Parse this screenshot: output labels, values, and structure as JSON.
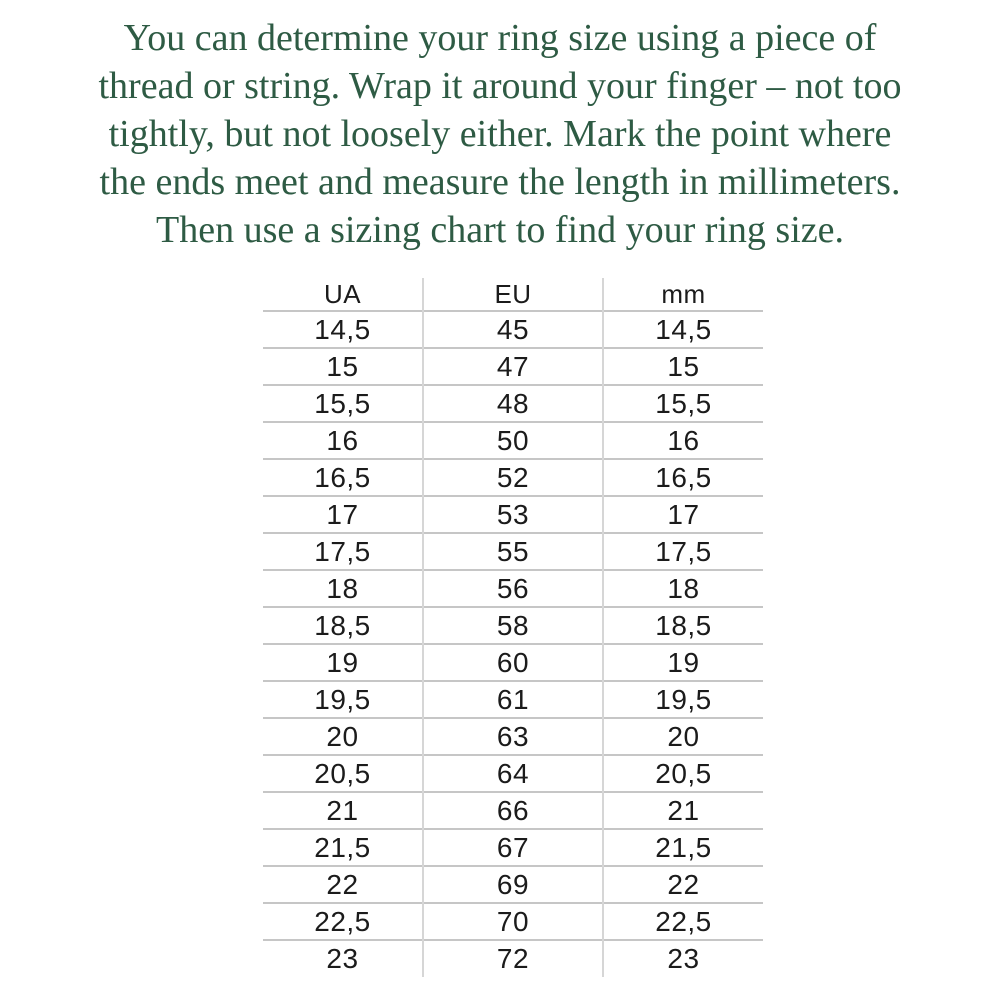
{
  "colors": {
    "background": "#ffffff",
    "instructions_text": "#2e5b44",
    "table_text": "#1b1b1b",
    "row_line": "#c6c6c6",
    "column_line": "#d6d6d6"
  },
  "instructions": {
    "lines": [
      "You can determine your ring size using a piece of",
      "thread or string. Wrap it around your finger – not too",
      "tightly, but not loosely either. Mark the point where",
      "the ends meet and measure the length in millimeters.",
      "Then use a sizing chart to find your ring size."
    ]
  },
  "table": {
    "headers": [
      "UA",
      "EU",
      "mm"
    ],
    "rows": [
      [
        "14,5",
        "45",
        "14,5"
      ],
      [
        "15",
        "47",
        "15"
      ],
      [
        "15,5",
        "48",
        "15,5"
      ],
      [
        "16",
        "50",
        "16"
      ],
      [
        "16,5",
        "52",
        "16,5"
      ],
      [
        "17",
        "53",
        "17"
      ],
      [
        "17,5",
        "55",
        "17,5"
      ],
      [
        "18",
        "56",
        "18"
      ],
      [
        "18,5",
        "58",
        "18,5"
      ],
      [
        "19",
        "60",
        "19"
      ],
      [
        "19,5",
        "61",
        "19,5"
      ],
      [
        "20",
        "63",
        "20"
      ],
      [
        "20,5",
        "64",
        "20,5"
      ],
      [
        "21",
        "66",
        "21"
      ],
      [
        "21,5",
        "67",
        "21,5"
      ],
      [
        "22",
        "69",
        "22"
      ],
      [
        "22,5",
        "70",
        "22,5"
      ],
      [
        "23",
        "72",
        "23"
      ]
    ]
  }
}
